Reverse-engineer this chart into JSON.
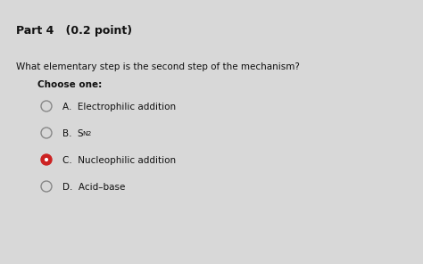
{
  "title": "Part 4   (0.2 point)",
  "question": "What elementary step is the second step of the mechanism?",
  "choose_one": "Choose one:",
  "options": [
    {
      "label": "A.  Electrophilic addition",
      "selected": false
    },
    {
      "label": "B.  S",
      "sub": "N2",
      "selected": false
    },
    {
      "label": "C.  Nucleophilic addition",
      "selected": true
    },
    {
      "label": "D.  Acid–base",
      "selected": false
    }
  ],
  "bg_color": "#d8d8d8",
  "text_color": "#111111",
  "selected_color": "#cc2222",
  "unselected_edge": "#888888",
  "font_size_title": 9,
  "font_size_question": 7.5,
  "font_size_choose": 7.5,
  "font_size_options": 7.5
}
